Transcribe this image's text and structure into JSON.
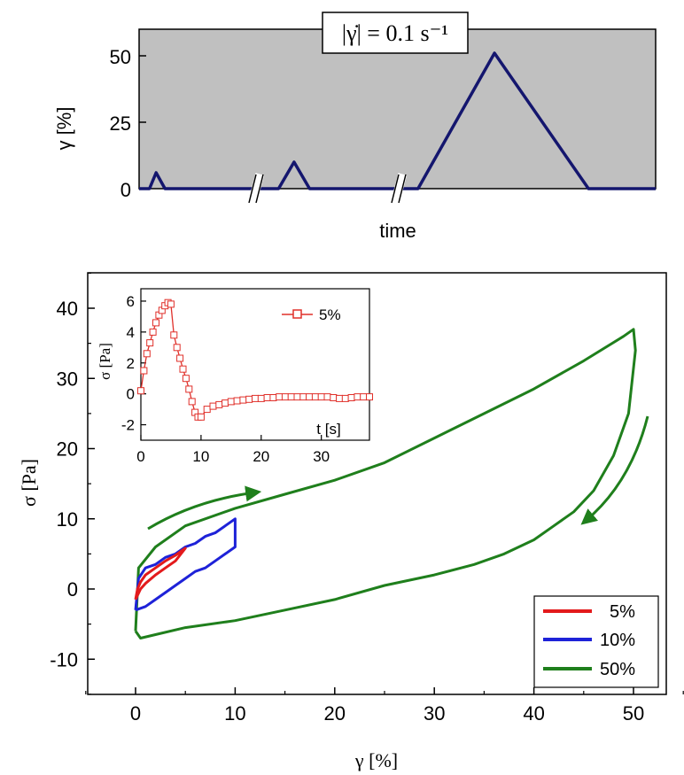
{
  "colors": {
    "background": "#c0c0c0",
    "top_series": "#14166e",
    "series_5": "#e31a1c",
    "series_10": "#1e22d8",
    "series_50": "#1f7f1c",
    "inset_series": "#e0302a"
  },
  "chart_data": [
    {
      "id": "strain-protocol",
      "type": "line",
      "annotation": "|γ̇| = 0.1 s⁻¹",
      "xlabel": "time",
      "ylabel": "γ [%]",
      "yticks": [
        0,
        25,
        50
      ],
      "ylim": [
        0,
        60
      ],
      "axis_breaks": 2,
      "series": [
        {
          "x": [
            0,
            2,
            3.3,
            5,
            24,
            27,
            30,
            33,
            50,
            54,
            68.8,
            87,
            100
          ],
          "y": [
            0,
            0,
            6,
            0,
            0,
            0,
            10,
            0,
            0,
            0,
            51,
            0,
            0
          ]
        }
      ]
    },
    {
      "id": "stress-strain",
      "type": "line",
      "xlabel": "γ [%]",
      "ylabel": "σ [Pa]",
      "xlim": [
        -5,
        55
      ],
      "ylim": [
        -15,
        45
      ],
      "xticks": [
        0,
        10,
        20,
        30,
        40,
        50
      ],
      "yticks": [
        -10,
        0,
        10,
        20,
        30,
        40
      ],
      "legend_position": "bottom-right",
      "series": [
        {
          "name": "5%",
          "x": [
            0,
            0.2,
            0.5,
            1,
            2,
            3,
            4,
            5,
            4,
            3,
            2,
            1,
            0.5,
            0
          ],
          "y": [
            -1.5,
            0,
            1,
            2,
            3,
            4,
            4.8,
            5.8,
            4,
            3,
            2,
            0.8,
            0,
            -1.5
          ]
        },
        {
          "name": "10%",
          "x": [
            0,
            0.3,
            1,
            2,
            3,
            4,
            5,
            6,
            7,
            8,
            9,
            10,
            10,
            9,
            8,
            7,
            6,
            5,
            4,
            3,
            2,
            1,
            0
          ],
          "y": [
            -3,
            1.5,
            3,
            3.5,
            4.5,
            5,
            6,
            6.5,
            7.5,
            8,
            9,
            10,
            6,
            5,
            4,
            3,
            2.5,
            1.5,
            0.5,
            -0.5,
            -1.5,
            -2.5,
            -3
          ]
        },
        {
          "name": "50%",
          "x": [
            0,
            0.3,
            2,
            5,
            10,
            15,
            20,
            25,
            30,
            35,
            40,
            45,
            49,
            50,
            50.2,
            49.5,
            48,
            46,
            44,
            42,
            40,
            37,
            34,
            30,
            25,
            20,
            15,
            10,
            5,
            2,
            0.5,
            0
          ],
          "y": [
            -6,
            3,
            6,
            9,
            11.5,
            13.5,
            15.5,
            18,
            21.5,
            25,
            28.5,
            32.5,
            36,
            37,
            34,
            25,
            19,
            14,
            11,
            9,
            7,
            5,
            3.5,
            2,
            0.5,
            -1.5,
            -3,
            -4.5,
            -5.5,
            -6.5,
            -7,
            -6
          ]
        }
      ]
    },
    {
      "id": "inset",
      "type": "line",
      "xlabel": "t [s]",
      "ylabel": "σ [Pa]",
      "xlim": [
        0,
        38
      ],
      "ylim": [
        -3,
        6.8
      ],
      "xticks": [
        0,
        10,
        20,
        30
      ],
      "yticks": [
        -2,
        0,
        2,
        4,
        6
      ],
      "legend_position": "top-right",
      "series": [
        {
          "name": "5%",
          "x": [
            0,
            0.5,
            1,
            1.5,
            2,
            2.5,
            3,
            3.5,
            4,
            4.5,
            5,
            5.5,
            6,
            6.5,
            7,
            7.5,
            8,
            8.5,
            9,
            9.5,
            10,
            11,
            12,
            13,
            14,
            15,
            16,
            17,
            18,
            19,
            20,
            21,
            22,
            23,
            24,
            25,
            26,
            27,
            28,
            29,
            30,
            31,
            32,
            33,
            34,
            35,
            36,
            37,
            38
          ],
          "y": [
            0.2,
            1.5,
            2.6,
            3.3,
            4,
            4.6,
            5.1,
            5.4,
            5.7,
            5.9,
            5.8,
            3.8,
            3,
            2.3,
            1.6,
            1,
            0.3,
            -0.5,
            -1.2,
            -1.5,
            -1.5,
            -1,
            -0.8,
            -0.7,
            -0.6,
            -0.5,
            -0.45,
            -0.4,
            -0.35,
            -0.3,
            -0.3,
            -0.25,
            -0.25,
            -0.2,
            -0.2,
            -0.2,
            -0.2,
            -0.2,
            -0.2,
            -0.2,
            -0.2,
            -0.2,
            -0.25,
            -0.3,
            -0.3,
            -0.25,
            -0.2,
            -0.2,
            -0.2
          ]
        }
      ]
    }
  ]
}
